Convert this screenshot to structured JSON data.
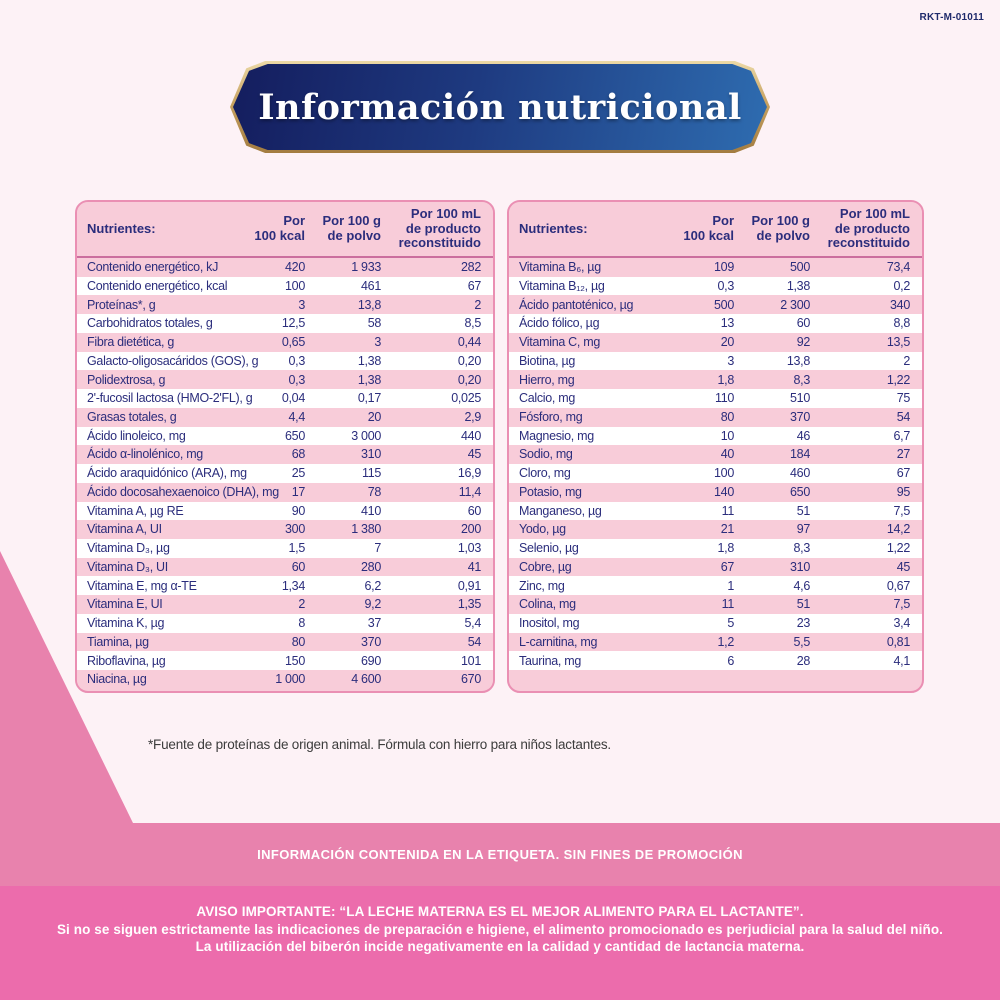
{
  "page": {
    "code": "RKT-M-01011",
    "title": "Información nutricional",
    "footnote": "*Fuente de proteínas de origen animal. Fórmula con hierro para niños lactantes.",
    "label_notice": "INFORMACIÓN CONTENIDA EN LA ETIQUETA. SIN FINES DE PROMOCIÓN",
    "warning": {
      "line1": "AVISO IMPORTANTE: “LA LECHE MATERNA ES EL MEJOR ALIMENTO PARA EL LACTANTE”.",
      "line2": "Si no se siguen estrictamente las indicaciones de preparación e higiene, el alimento promocionado es perjudicial para la salud del niño.",
      "line3": "La utilización del biberón incide negativamente en la calidad y cantidad de lactancia materna."
    }
  },
  "colors": {
    "background": "#fdf2f6",
    "banner_navy_left": "#141d5e",
    "banner_blue_right": "#2e6cb0",
    "banner_gold": "#c7a261",
    "table_border": "#ea8fb3",
    "row_pink": "#f8ccd9",
    "row_white": "#ffffff",
    "table_text": "#2b2d7c",
    "band_pink": "#e882ad",
    "warning_pink": "#ec6cac"
  },
  "table_header": {
    "col0": "Nutrientes:",
    "col1": "Por\n100 kcal",
    "col2": "Por 100 g\nde polvo",
    "col3": "Por 100 mL\nde producto\nreconstituido"
  },
  "left_table_rows": [
    [
      "Contenido energético, kJ",
      "420",
      "1 933",
      "282"
    ],
    [
      "Contenido energético, kcal",
      "100",
      "461",
      "67"
    ],
    [
      "Proteínas*, g",
      "3",
      "13,8",
      "2"
    ],
    [
      "Carbohidratos totales, g",
      "12,5",
      "58",
      "8,5"
    ],
    [
      "Fibra dietética, g",
      "0,65",
      "3",
      "0,44"
    ],
    [
      "Galacto-oligosacáridos (GOS), g",
      "0,3",
      "1,38",
      "0,20"
    ],
    [
      "Polidextrosa, g",
      "0,3",
      "1,38",
      "0,20"
    ],
    [
      "2'-fucosil lactosa (HMO-2'FL), g",
      "0,04",
      "0,17",
      "0,025"
    ],
    [
      "Grasas totales, g",
      "4,4",
      "20",
      "2,9"
    ],
    [
      "Ácido linoleico, mg",
      "650",
      "3 000",
      "440"
    ],
    [
      "Ácido α-linolénico, mg",
      "68",
      "310",
      "45"
    ],
    [
      "Ácido araquidónico (ARA), mg",
      "25",
      "115",
      "16,9"
    ],
    [
      "Ácido docosahexaenoico (DHA), mg",
      "17",
      "78",
      "11,4"
    ],
    [
      "Vitamina A, µg RE",
      "90",
      "410",
      "60"
    ],
    [
      "Vitamina A, UI",
      "300",
      "1 380",
      "200"
    ],
    [
      "Vitamina D₃, µg",
      "1,5",
      "7",
      "1,03"
    ],
    [
      "Vitamina D₃, UI",
      "60",
      "280",
      "41"
    ],
    [
      "Vitamina E, mg α-TE",
      "1,34",
      "6,2",
      "0,91"
    ],
    [
      "Vitamina E, UI",
      "2",
      "9,2",
      "1,35"
    ],
    [
      "Vitamina K, µg",
      "8",
      "37",
      "5,4"
    ],
    [
      "Tiamina, µg",
      "80",
      "370",
      "54"
    ],
    [
      "Riboflavina, µg",
      "150",
      "690",
      "101"
    ],
    [
      "Niacina, µg",
      "1 000",
      "4 600",
      "670"
    ]
  ],
  "right_table_rows": [
    [
      "Vitamina B₆, µg",
      "109",
      "500",
      "73,4"
    ],
    [
      "Vitamina B₁₂, µg",
      "0,3",
      "1,38",
      "0,2"
    ],
    [
      "Ácido pantoténico, µg",
      "500",
      "2 300",
      "340"
    ],
    [
      "Ácido fólico, µg",
      "13",
      "60",
      "8,8"
    ],
    [
      "Vitamina C, mg",
      "20",
      "92",
      "13,5"
    ],
    [
      "Biotina, µg",
      "3",
      "13,8",
      "2"
    ],
    [
      "Hierro, mg",
      "1,8",
      "8,3",
      "1,22"
    ],
    [
      "Calcio, mg",
      "110",
      "510",
      "75"
    ],
    [
      "Fósforo, mg",
      "80",
      "370",
      "54"
    ],
    [
      "Magnesio, mg",
      "10",
      "46",
      "6,7"
    ],
    [
      "Sodio, mg",
      "40",
      "184",
      "27"
    ],
    [
      "Cloro, mg",
      "100",
      "460",
      "67"
    ],
    [
      "Potasio, mg",
      "140",
      "650",
      "95"
    ],
    [
      "Manganeso, µg",
      "11",
      "51",
      "7,5"
    ],
    [
      "Yodo, µg",
      "21",
      "97",
      "14,2"
    ],
    [
      "Selenio, µg",
      "1,8",
      "8,3",
      "1,22"
    ],
    [
      "Cobre, µg",
      "67",
      "310",
      "45"
    ],
    [
      "Zinc, mg",
      "1",
      "4,6",
      "0,67"
    ],
    [
      "Colina, mg",
      "11",
      "51",
      "7,5"
    ],
    [
      "Inositol, mg",
      "5",
      "23",
      "3,4"
    ],
    [
      "L-carnitina, mg",
      "1,2",
      "5,5",
      "0,81"
    ],
    [
      "Taurina, mg",
      "6",
      "28",
      "4,1"
    ]
  ]
}
